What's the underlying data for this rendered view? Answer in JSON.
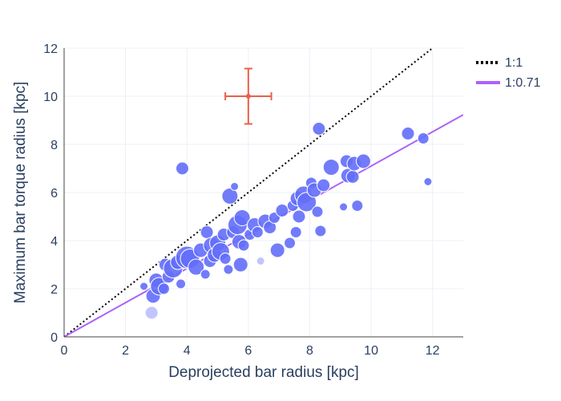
{
  "chart_data": {
    "type": "scatter",
    "title": "",
    "xlabel": "Deprojected bar radius [kpc]",
    "ylabel": "Maximum bar torque radius [kpc]",
    "xlim": [
      0,
      13
    ],
    "ylim": [
      0,
      12
    ],
    "xticks": [
      0,
      2,
      4,
      6,
      8,
      10,
      12
    ],
    "yticks": [
      0,
      2,
      4,
      6,
      8,
      10,
      12
    ],
    "grid": true,
    "legend_position": "top-right",
    "colors": {
      "points": "#636efa",
      "one_to_one": "#000000",
      "fit": "#ab63fa",
      "error_bar": "#e8604c",
      "grid": "#ebf0f8",
      "text": "#2a3f5f"
    },
    "lines": [
      {
        "name": "1:1",
        "slope": 1.0,
        "style": "dotted"
      },
      {
        "name": "1:0.71",
        "slope": 0.71,
        "style": "solid"
      }
    ],
    "error_bar": {
      "x": 6.0,
      "y": 10.0,
      "xerr": 0.75,
      "yerr": 1.15
    },
    "points": [
      {
        "x": 2.6,
        "y": 2.1,
        "s": 5
      },
      {
        "x": 2.85,
        "y": 1.0,
        "s": 8,
        "o": 0.4
      },
      {
        "x": 2.9,
        "y": 1.7,
        "s": 9
      },
      {
        "x": 3.0,
        "y": 2.35,
        "s": 9
      },
      {
        "x": 3.1,
        "y": 2.1,
        "s": 11
      },
      {
        "x": 3.25,
        "y": 2.0,
        "s": 7
      },
      {
        "x": 3.3,
        "y": 3.0,
        "s": 8
      },
      {
        "x": 3.4,
        "y": 2.5,
        "s": 8
      },
      {
        "x": 3.55,
        "y": 2.85,
        "s": 12
      },
      {
        "x": 3.7,
        "y": 3.1,
        "s": 9
      },
      {
        "x": 3.8,
        "y": 2.2,
        "s": 6
      },
      {
        "x": 3.85,
        "y": 7.0,
        "s": 8
      },
      {
        "x": 4.0,
        "y": 3.3,
        "s": 14
      },
      {
        "x": 4.1,
        "y": 3.25,
        "s": 12
      },
      {
        "x": 4.3,
        "y": 2.9,
        "s": 10
      },
      {
        "x": 4.45,
        "y": 3.6,
        "s": 9
      },
      {
        "x": 4.6,
        "y": 2.6,
        "s": 6
      },
      {
        "x": 4.65,
        "y": 4.35,
        "s": 8
      },
      {
        "x": 4.75,
        "y": 3.15,
        "s": 8
      },
      {
        "x": 4.8,
        "y": 3.8,
        "s": 10
      },
      {
        "x": 4.9,
        "y": 3.4,
        "s": 9
      },
      {
        "x": 5.0,
        "y": 3.9,
        "s": 10
      },
      {
        "x": 5.1,
        "y": 3.55,
        "s": 11
      },
      {
        "x": 5.2,
        "y": 4.25,
        "s": 8
      },
      {
        "x": 5.25,
        "y": 3.25,
        "s": 7
      },
      {
        "x": 5.35,
        "y": 2.8,
        "s": 6
      },
      {
        "x": 5.4,
        "y": 5.85,
        "s": 10
      },
      {
        "x": 5.5,
        "y": 4.35,
        "s": 8
      },
      {
        "x": 5.55,
        "y": 6.25,
        "s": 5
      },
      {
        "x": 5.65,
        "y": 4.65,
        "s": 12
      },
      {
        "x": 5.7,
        "y": 3.95,
        "s": 9
      },
      {
        "x": 5.75,
        "y": 3.0,
        "s": 9
      },
      {
        "x": 5.8,
        "y": 4.95,
        "s": 10
      },
      {
        "x": 5.85,
        "y": 3.8,
        "s": 7
      },
      {
        "x": 6.05,
        "y": 4.25,
        "s": 7
      },
      {
        "x": 6.2,
        "y": 4.65,
        "s": 9
      },
      {
        "x": 6.3,
        "y": 4.35,
        "s": 7
      },
      {
        "x": 6.4,
        "y": 3.15,
        "s": 5,
        "o": 0.4
      },
      {
        "x": 6.55,
        "y": 4.8,
        "s": 9
      },
      {
        "x": 6.7,
        "y": 4.55,
        "s": 8
      },
      {
        "x": 6.85,
        "y": 4.95,
        "s": 7
      },
      {
        "x": 6.95,
        "y": 3.6,
        "s": 9
      },
      {
        "x": 7.1,
        "y": 5.25,
        "s": 8
      },
      {
        "x": 7.35,
        "y": 3.9,
        "s": 7
      },
      {
        "x": 7.45,
        "y": 5.45,
        "s": 7
      },
      {
        "x": 7.55,
        "y": 4.35,
        "s": 7
      },
      {
        "x": 7.6,
        "y": 5.75,
        "s": 9
      },
      {
        "x": 7.65,
        "y": 5.0,
        "s": 8
      },
      {
        "x": 7.8,
        "y": 5.9,
        "s": 11
      },
      {
        "x": 7.9,
        "y": 5.6,
        "s": 12
      },
      {
        "x": 8.05,
        "y": 6.4,
        "s": 7
      },
      {
        "x": 8.15,
        "y": 6.1,
        "s": 9
      },
      {
        "x": 8.25,
        "y": 5.2,
        "s": 7
      },
      {
        "x": 8.3,
        "y": 8.65,
        "s": 8
      },
      {
        "x": 8.35,
        "y": 4.4,
        "s": 7
      },
      {
        "x": 8.45,
        "y": 6.3,
        "s": 8
      },
      {
        "x": 8.7,
        "y": 7.05,
        "s": 10
      },
      {
        "x": 9.1,
        "y": 5.4,
        "s": 5
      },
      {
        "x": 9.2,
        "y": 7.3,
        "s": 8
      },
      {
        "x": 9.25,
        "y": 6.7,
        "s": 9
      },
      {
        "x": 9.4,
        "y": 6.65,
        "s": 8
      },
      {
        "x": 9.45,
        "y": 7.2,
        "s": 9
      },
      {
        "x": 9.55,
        "y": 5.45,
        "s": 7
      },
      {
        "x": 9.75,
        "y": 7.3,
        "s": 9
      },
      {
        "x": 11.2,
        "y": 8.45,
        "s": 8
      },
      {
        "x": 11.7,
        "y": 8.25,
        "s": 7
      },
      {
        "x": 11.85,
        "y": 6.45,
        "s": 5
      }
    ]
  }
}
